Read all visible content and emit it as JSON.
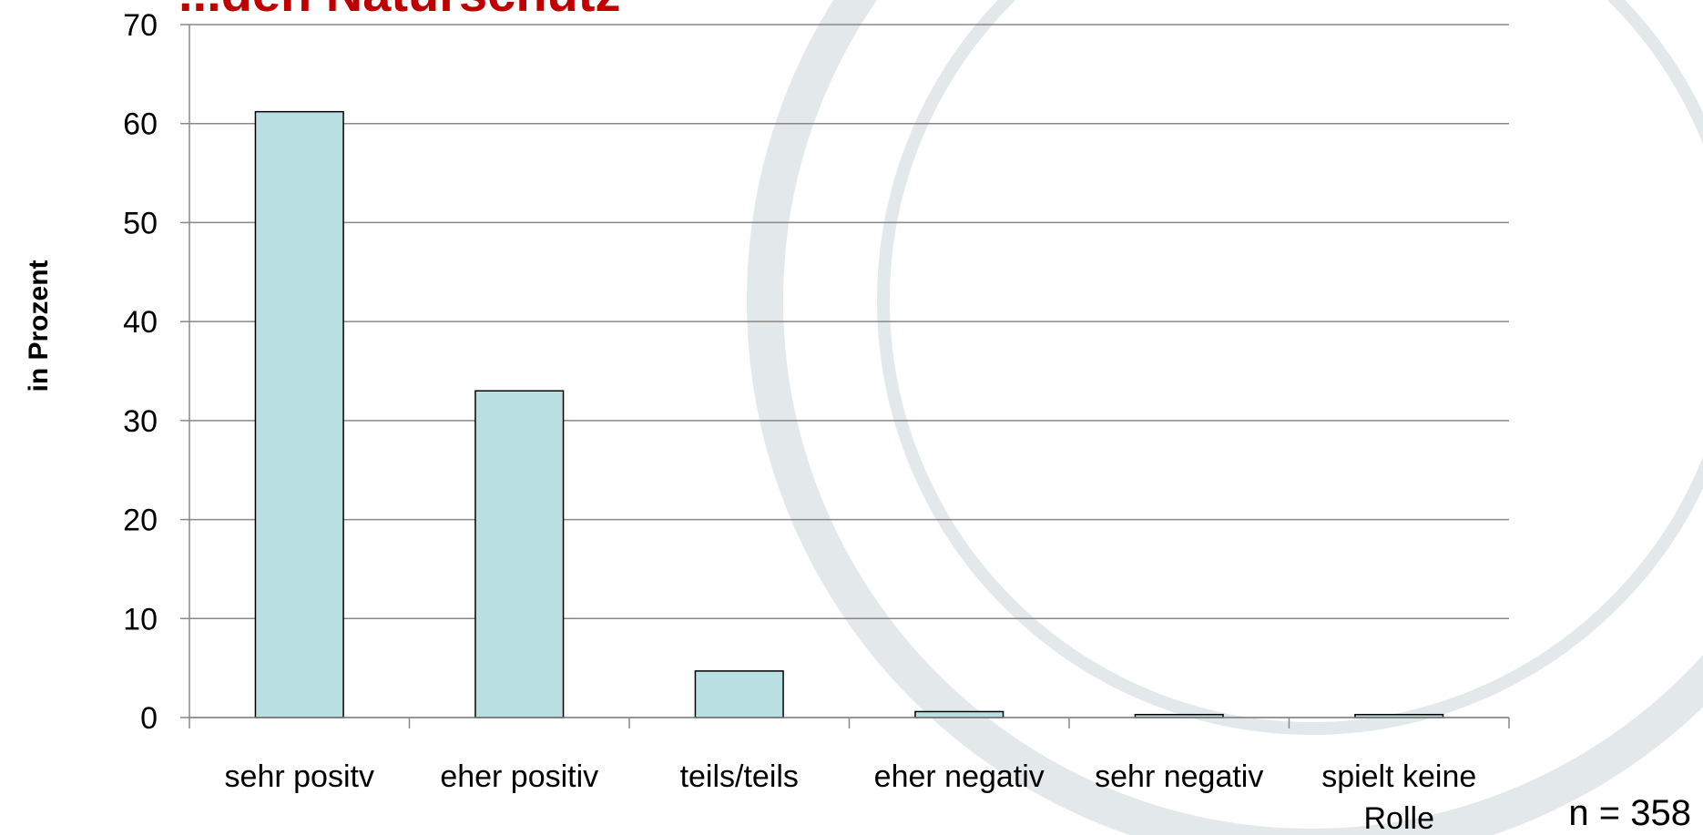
{
  "chart_data": {
    "type": "bar",
    "title": "...den Naturschutz",
    "y_label": "in Prozent",
    "annotation": "n = 358",
    "categories": [
      "sehr positv",
      "eher positiv",
      "teils/teils",
      "eher negativ",
      "sehr negativ",
      "spielt keine Rolle"
    ],
    "values": [
      61.2,
      33,
      4.7,
      0.6,
      0.3,
      0.3
    ],
    "color": "#b9dfe3",
    "ylim": [
      0,
      70
    ],
    "yticks": [
      0,
      10,
      20,
      30,
      40,
      50,
      60,
      70
    ],
    "grid": true
  }
}
